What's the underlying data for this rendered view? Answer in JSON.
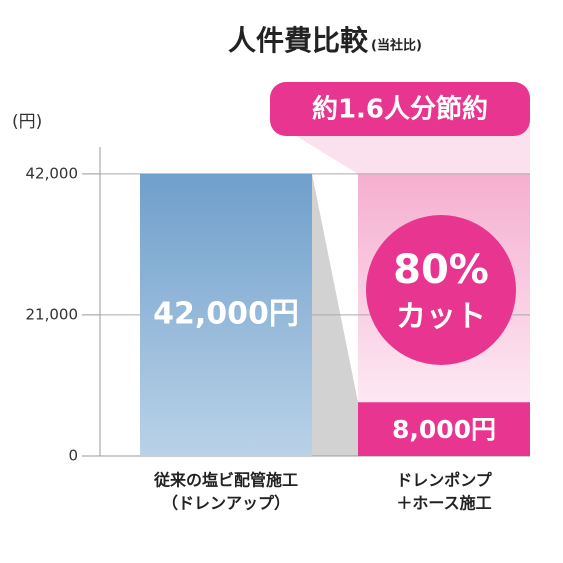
{
  "chart_data": {
    "type": "bar",
    "title": "人件費比較",
    "subtitle": "(当社比)",
    "y_label": "(円)",
    "categories": [
      [
        "従来の塩ビ配管施工",
        "（ドレンアップ）"
      ],
      [
        "ドレンポンプ",
        "＋ホース施工"
      ]
    ],
    "values": [
      42000,
      8000
    ],
    "value_labels": [
      "42,000円",
      "8,000円"
    ],
    "colors": [
      "#6f9fcb",
      "#e8358f"
    ],
    "ylim": [
      0,
      46000
    ],
    "yticks": [
      0,
      {
        "value": 21000,
        "label": "21,000"
      },
      {
        "value": 42000,
        "label": "42,000"
      }
    ],
    "grid": true,
    "annotations": [
      "約1.6人分節約",
      "80%",
      "カット"
    ]
  }
}
